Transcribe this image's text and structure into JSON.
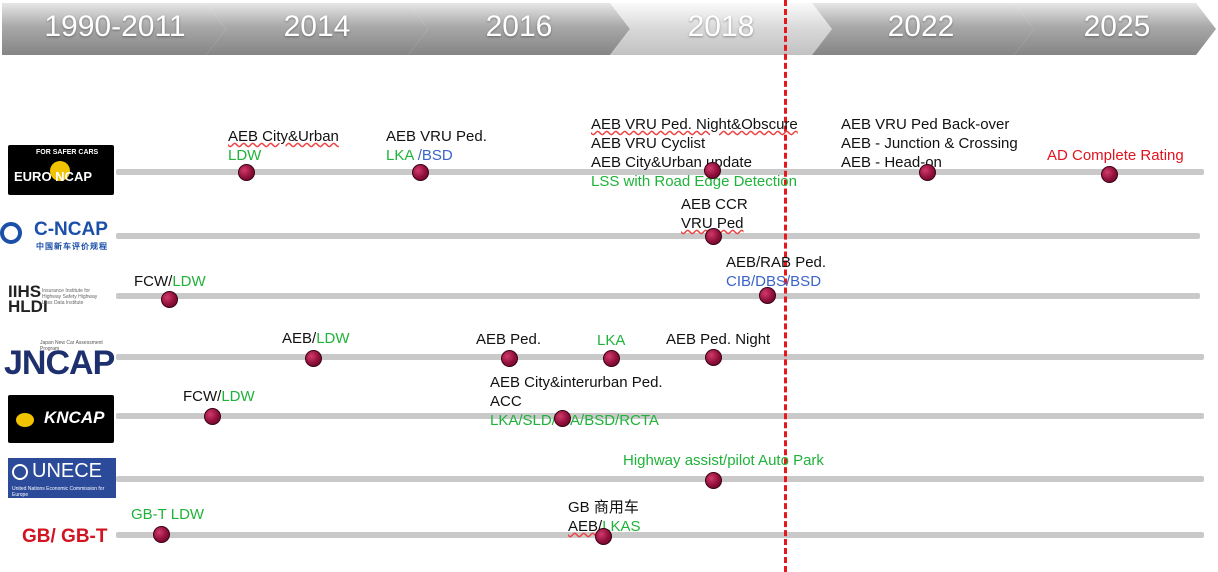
{
  "timeline_years": [
    "1990-2011",
    "2014",
    "2016",
    "2018",
    "2022",
    "2025"
  ],
  "organizations": {
    "euro_ncap": {
      "logo_text": "EURO NCAP",
      "logo_top": "FOR SAFER CARS"
    },
    "c_ncap": {
      "logo_text": "C-NCAP",
      "logo_sub": "中国新车评价规程"
    },
    "iihs": {
      "logo_text": "IIHS HLDI",
      "logo_sub": "Insurance Institute for Highway Safety Highway Loss Data Institute"
    },
    "jncap": {
      "logo_text": "JNCAP",
      "logo_sub": "Japan New Car Assessment Program"
    },
    "kncap": {
      "logo_text": "KNCAP"
    },
    "unece": {
      "logo_text": "UNECE",
      "logo_sub": "United Nations Economic Commission for Europe"
    },
    "gb": {
      "label": "GB/ GB-T"
    }
  },
  "annotations": {
    "euro_2014_l1": "AEB City&Urban",
    "euro_2014_l2": "LDW",
    "euro_2016_l1": "AEB VRU Ped.",
    "euro_2016_l2a": "LKA",
    "euro_2016_l2b": " /BSD",
    "euro_2018_l1": "AEB VRU Ped. Night&Obscure",
    "euro_2018_l2": "AEB VRU Cyclist",
    "euro_2018_l3": "AEB City&Urban update",
    "euro_2018_l4": "LSS with Road Edge Detection",
    "euro_2022_l1": "AEB VRU Ped Back-over",
    "euro_2022_l2": "AEB - Junction & Crossing",
    "euro_2022_l3": "AEB - Head-on",
    "euro_2025": "AD Complete Rating",
    "cncap_l1": "AEB CCR",
    "cncap_l2": "VRU  Ped",
    "iihs_a1": "FCW/",
    "iihs_a2": "LDW",
    "iihs_b1": "AEB/RAB Ped.",
    "iihs_b2": "CIB/DBS/BSD",
    "jncap_a1": "AEB/",
    "jncap_a2": "LDW",
    "jncap_b": "AEB Ped.",
    "jncap_c": "LKA",
    "jncap_d": "AEB Ped. Night",
    "kncap_a1": "FCW/",
    "kncap_a2": "LDW",
    "kncap_b1": "AEB City&interurban Ped.",
    "kncap_b2": "ACC",
    "kncap_b3": "LKA/SLD/ISA/BSD/RCTA",
    "unece": "Highway assist/pilot  Auto Park",
    "gb_a": "GB-T LDW",
    "gb_b1": "GB 商用车",
    "gb_b2a": "AEB/",
    "gb_b2b": "LKAS"
  },
  "colors": {
    "green_text": "#1fb33a",
    "blue_text": "#3a64c8",
    "red_text": "#e0141e",
    "dot": "#8e0f3a",
    "dashed_marker": "#e4191c"
  },
  "dots": [
    {
      "row": "euro_ncap",
      "label": "2014"
    },
    {
      "row": "euro_ncap",
      "label": "2016"
    },
    {
      "row": "euro_ncap",
      "label": "2018"
    },
    {
      "row": "euro_ncap",
      "label": "2022"
    },
    {
      "row": "euro_ncap",
      "label": "2025"
    },
    {
      "row": "c_ncap",
      "label": "2018"
    },
    {
      "row": "iihs",
      "label": "1990-2011"
    },
    {
      "row": "iihs",
      "label": "2018"
    },
    {
      "row": "jncap",
      "label": "2014"
    },
    {
      "row": "jncap",
      "label": "2016a"
    },
    {
      "row": "jncap",
      "label": "2016b"
    },
    {
      "row": "jncap",
      "label": "2018"
    },
    {
      "row": "kncap",
      "label": "1990-2011"
    },
    {
      "row": "kncap",
      "label": "2016"
    },
    {
      "row": "unece",
      "label": "2018"
    },
    {
      "row": "gb",
      "label": "1990-2011"
    },
    {
      "row": "gb",
      "label": "2016"
    }
  ]
}
